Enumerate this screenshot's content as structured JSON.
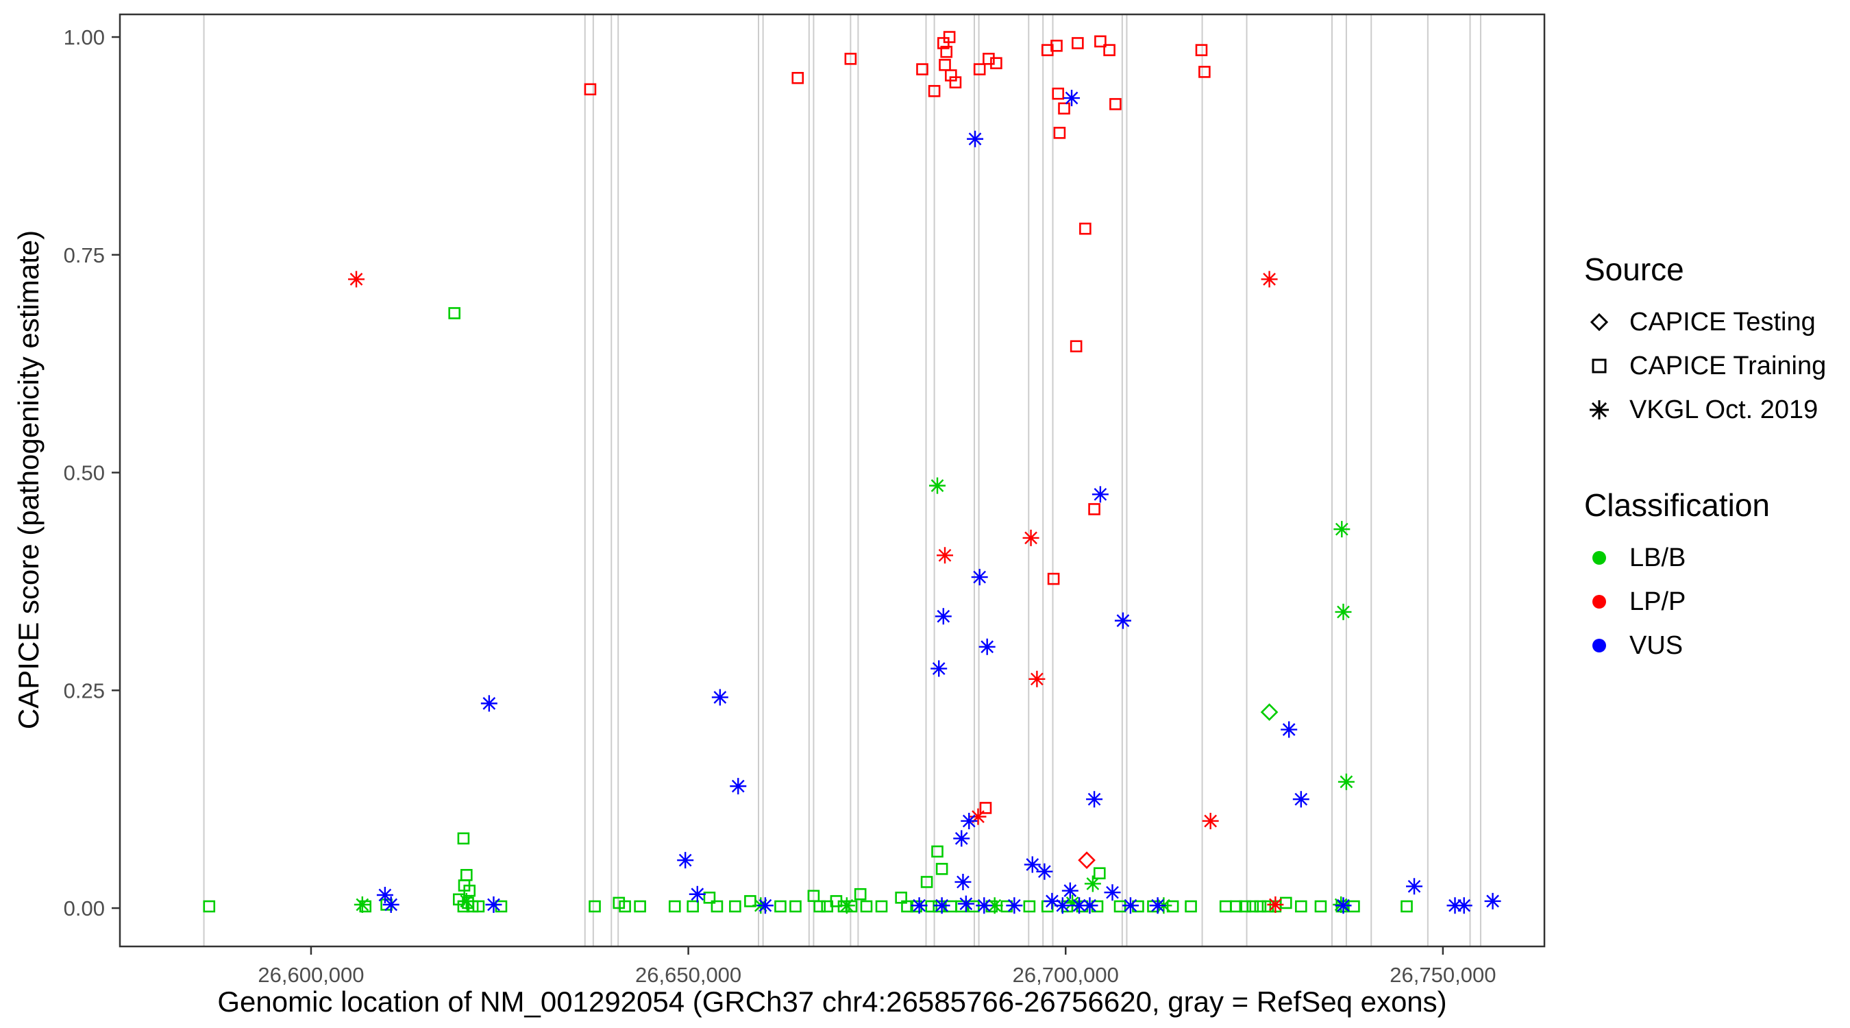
{
  "legend": {
    "source": {
      "title": "Source",
      "items": [
        {
          "label": "CAPICE Testing",
          "shape": "diamond"
        },
        {
          "label": "CAPICE Training",
          "shape": "square"
        },
        {
          "label": "VKGL Oct. 2019",
          "shape": "asterisk"
        }
      ]
    },
    "classification": {
      "title": "Classification",
      "items": [
        {
          "label": "LB/B",
          "color": "#00cd00"
        },
        {
          "label": "LP/P",
          "color": "#ff0000"
        },
        {
          "label": "VUS",
          "color": "#0000ff"
        }
      ]
    }
  },
  "chart_data": {
    "type": "scatter",
    "title": "",
    "xlabel": "Genomic location of NM_001292054 (GRCh37 chr4:26585766-26756620, gray = RefSeq exons)",
    "ylabel": "CAPICE score (pathogenicity estimate)",
    "xlim": [
      26574670,
      26763450
    ],
    "ylim": [
      -0.044,
      1.026
    ],
    "x_ticks": [
      26600000,
      26650000,
      26700000,
      26750000
    ],
    "x_tick_labels": [
      "26,600,000",
      "26,650,000",
      "26,700,000",
      "26,750,000"
    ],
    "y_ticks": [
      0,
      0.25,
      0.5,
      0.75,
      1
    ],
    "y_tick_labels": [
      "0.00",
      "0.25",
      "0.50",
      "0.75",
      "1.00"
    ],
    "grid": false,
    "legend_position": "right",
    "exon_note": "gray vertical lines = RefSeq exons",
    "exon_color": "#cccccc",
    "exons": [
      26585800,
      26636300,
      26637400,
      26639800,
      26640700,
      26659300,
      26659900,
      26666000,
      26666600,
      26671500,
      26672500,
      26681500,
      26682600,
      26687900,
      26688500,
      26695100,
      26697000,
      26698300,
      26707500,
      26708100,
      26718100,
      26724000,
      26735300,
      26737200,
      26740500,
      26748000,
      26753600,
      26755000
    ],
    "series": [
      {
        "source": "CAPICE Testing",
        "classification": "LB/B",
        "shape": "diamond",
        "color": "#00cd00",
        "points": [
          [
            26727000,
            0.225
          ]
        ]
      },
      {
        "source": "CAPICE Testing",
        "classification": "LP/P",
        "shape": "diamond",
        "color": "#ff0000",
        "points": [
          [
            26702800,
            0.055
          ]
        ]
      },
      {
        "source": "CAPICE Training",
        "classification": "LB/B",
        "shape": "square",
        "color": "#00cd00",
        "points": [
          [
            26619000,
            0.683
          ],
          [
            26620200,
            0.08
          ],
          [
            26620600,
            0.038
          ],
          [
            26620300,
            0.026
          ],
          [
            26621000,
            0.02
          ],
          [
            26683000,
            0.065
          ],
          [
            26683600,
            0.045
          ],
          [
            26681600,
            0.03
          ],
          [
            26704500,
            0.04
          ],
          [
            26586500,
            0.002
          ],
          [
            26607200,
            0.002
          ],
          [
            26610000,
            0.004
          ],
          [
            26619600,
            0.01
          ],
          [
            26620200,
            0.002
          ],
          [
            26620800,
            0.006
          ],
          [
            26621400,
            0.002
          ],
          [
            26622200,
            0.002
          ],
          [
            26625200,
            0.002
          ],
          [
            26637600,
            0.002
          ],
          [
            26640800,
            0.006
          ],
          [
            26641600,
            0.002
          ],
          [
            26643600,
            0.002
          ],
          [
            26648200,
            0.002
          ],
          [
            26650600,
            0.002
          ],
          [
            26652800,
            0.012
          ],
          [
            26653800,
            0.002
          ],
          [
            26656200,
            0.002
          ],
          [
            26658200,
            0.008
          ],
          [
            26662200,
            0.002
          ],
          [
            26664200,
            0.002
          ],
          [
            26666600,
            0.014
          ],
          [
            26667400,
            0.002
          ],
          [
            26668400,
            0.002
          ],
          [
            26669600,
            0.008
          ],
          [
            26670600,
            0.002
          ],
          [
            26671600,
            0.002
          ],
          [
            26672800,
            0.016
          ],
          [
            26673600,
            0.002
          ],
          [
            26675600,
            0.002
          ],
          [
            26678200,
            0.012
          ],
          [
            26679000,
            0.002
          ],
          [
            26680200,
            0.002
          ],
          [
            26682200,
            0.002
          ],
          [
            26683200,
            0.002
          ],
          [
            26684800,
            0.002
          ],
          [
            26686200,
            0.002
          ],
          [
            26687800,
            0.002
          ],
          [
            26690200,
            0.002
          ],
          [
            26692200,
            0.002
          ],
          [
            26695200,
            0.002
          ],
          [
            26697600,
            0.002
          ],
          [
            26700200,
            0.002
          ],
          [
            26702200,
            0.002
          ],
          [
            26704200,
            0.002
          ],
          [
            26707200,
            0.002
          ],
          [
            26709600,
            0.002
          ],
          [
            26711600,
            0.002
          ],
          [
            26714200,
            0.002
          ],
          [
            26716600,
            0.002
          ],
          [
            26721200,
            0.002
          ],
          [
            26722600,
            0.002
          ],
          [
            26723800,
            0.002
          ],
          [
            26724800,
            0.002
          ],
          [
            26725800,
            0.002
          ],
          [
            26726800,
            0.002
          ],
          [
            26727800,
            0.002
          ],
          [
            26729200,
            0.006
          ],
          [
            26731200,
            0.002
          ],
          [
            26733800,
            0.002
          ],
          [
            26736600,
            0.002
          ],
          [
            26738200,
            0.002
          ],
          [
            26745200,
            0.002
          ]
        ]
      },
      {
        "source": "CAPICE Training",
        "classification": "LP/P",
        "shape": "square",
        "color": "#ff0000",
        "points": [
          [
            26637000,
            0.94
          ],
          [
            26664500,
            0.953
          ],
          [
            26671500,
            0.975
          ],
          [
            26681000,
            0.963
          ],
          [
            26682600,
            0.938
          ],
          [
            26683800,
            0.993
          ],
          [
            26684600,
            1.0
          ],
          [
            26684200,
            0.983
          ],
          [
            26684000,
            0.968
          ],
          [
            26684800,
            0.956
          ],
          [
            26685400,
            0.948
          ],
          [
            26688600,
            0.963
          ],
          [
            26689800,
            0.975
          ],
          [
            26690800,
            0.97
          ],
          [
            26697600,
            0.985
          ],
          [
            26698800,
            0.99
          ],
          [
            26699000,
            0.935
          ],
          [
            26699800,
            0.918
          ],
          [
            26699200,
            0.89
          ],
          [
            26701600,
            0.993
          ],
          [
            26704600,
            0.995
          ],
          [
            26705800,
            0.985
          ],
          [
            26706600,
            0.923
          ],
          [
            26718000,
            0.985
          ],
          [
            26718400,
            0.96
          ],
          [
            26702600,
            0.78
          ],
          [
            26701400,
            0.645
          ],
          [
            26703800,
            0.458
          ],
          [
            26698400,
            0.378
          ],
          [
            26689400,
            0.115
          ]
        ]
      },
      {
        "source": "VKGL Oct. 2019",
        "classification": "LB/B",
        "shape": "asterisk",
        "color": "#00cd00",
        "points": [
          [
            26683000,
            0.485
          ],
          [
            26736600,
            0.435
          ],
          [
            26736800,
            0.34
          ],
          [
            26737200,
            0.145
          ],
          [
            26703600,
            0.028
          ],
          [
            26606800,
            0.004
          ],
          [
            26620600,
            0.008
          ],
          [
            26659600,
            0.003
          ],
          [
            26671000,
            0.003
          ],
          [
            26690600,
            0.003
          ],
          [
            26700900,
            0.006
          ],
          [
            26713000,
            0.003
          ],
          [
            26736500,
            0.004
          ]
        ]
      },
      {
        "source": "VKGL Oct. 2019",
        "classification": "LP/P",
        "shape": "asterisk",
        "color": "#ff0000",
        "points": [
          [
            26606000,
            0.722
          ],
          [
            26727000,
            0.722
          ],
          [
            26695400,
            0.425
          ],
          [
            26684000,
            0.405
          ],
          [
            26696200,
            0.263
          ],
          [
            26688400,
            0.105
          ],
          [
            26719200,
            0.1
          ],
          [
            26727800,
            0.004
          ]
        ]
      },
      {
        "source": "VKGL Oct. 2019",
        "classification": "VUS",
        "shape": "asterisk",
        "color": "#0000ff",
        "points": [
          [
            26700800,
            0.93
          ],
          [
            26688000,
            0.883
          ],
          [
            26704600,
            0.475
          ],
          [
            26688600,
            0.38
          ],
          [
            26683800,
            0.335
          ],
          [
            26707600,
            0.33
          ],
          [
            26689600,
            0.3
          ],
          [
            26683200,
            0.275
          ],
          [
            26654200,
            0.242
          ],
          [
            26623600,
            0.235
          ],
          [
            26729600,
            0.205
          ],
          [
            26656600,
            0.14
          ],
          [
            26731200,
            0.125
          ],
          [
            26703800,
            0.125
          ],
          [
            26687200,
            0.1
          ],
          [
            26686200,
            0.08
          ],
          [
            26649600,
            0.055
          ],
          [
            26695600,
            0.05
          ],
          [
            26697200,
            0.042
          ],
          [
            26686400,
            0.03
          ],
          [
            26746200,
            0.025
          ],
          [
            26609800,
            0.015
          ],
          [
            26700600,
            0.02
          ],
          [
            26706200,
            0.018
          ],
          [
            26651200,
            0.016
          ],
          [
            26610600,
            0.004
          ],
          [
            26624200,
            0.004
          ],
          [
            26660200,
            0.003
          ],
          [
            26680600,
            0.003
          ],
          [
            26683600,
            0.003
          ],
          [
            26686800,
            0.005
          ],
          [
            26689200,
            0.003
          ],
          [
            26693200,
            0.003
          ],
          [
            26698200,
            0.008
          ],
          [
            26699600,
            0.003
          ],
          [
            26701800,
            0.003
          ],
          [
            26703200,
            0.003
          ],
          [
            26708600,
            0.003
          ],
          [
            26712200,
            0.003
          ],
          [
            26736800,
            0.003
          ],
          [
            26751600,
            0.003
          ],
          [
            26752800,
            0.003
          ],
          [
            26756600,
            0.008
          ]
        ]
      }
    ]
  }
}
